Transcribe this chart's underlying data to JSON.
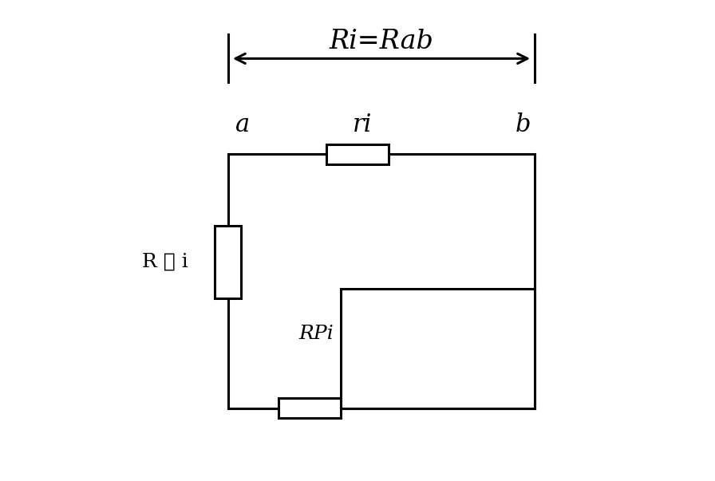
{
  "background_color": "#ffffff",
  "title_text": "Ri=Rab",
  "label_a": "a",
  "label_b": "b",
  "label_ri": "ri",
  "label_Rsi": "R 串 i",
  "label_RPi": "RPi",
  "fig_width": 8.96,
  "fig_height": 6.03,
  "dpi": 100,
  "lw": 2.2
}
